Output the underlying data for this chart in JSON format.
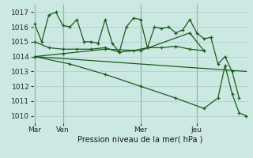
{
  "bg_color": "#cbe8e2",
  "grid_color": "#a8cfc8",
  "line_color": "#1a5c1a",
  "title": "Pression niveau de la mer( hPa )",
  "ylim": [
    1009.5,
    1017.5
  ],
  "yticks": [
    1010,
    1011,
    1012,
    1013,
    1014,
    1015,
    1016,
    1017
  ],
  "xlabel_day_labels": [
    "Mar",
    "Ven",
    "Mer",
    "Jeu"
  ],
  "xlabel_day_positions": [
    0,
    8,
    30,
    46
  ],
  "vline_positions": [
    0,
    8,
    30,
    46
  ],
  "series": [
    {
      "x": [
        0,
        2,
        4,
        6,
        8,
        10,
        12,
        14,
        16,
        18,
        20,
        22,
        24,
        26,
        28,
        30,
        32,
        34,
        36,
        38,
        40,
        42,
        44,
        46,
        48,
        50,
        52,
        54,
        56,
        58
      ],
      "y": [
        1016.2,
        1015.0,
        1016.8,
        1017.0,
        1016.1,
        1016.0,
        1016.5,
        1015.0,
        1015.0,
        1014.9,
        1016.5,
        1014.9,
        1014.3,
        1016.0,
        1016.6,
        1016.5,
        1014.6,
        1016.0,
        1015.9,
        1016.0,
        1015.6,
        1015.8,
        1016.5,
        1015.6,
        1015.2,
        1015.3,
        1013.5,
        1014.0,
        1013.0,
        1011.2
      ],
      "marker": true
    },
    {
      "x": [
        0,
        4,
        8,
        12,
        16,
        20,
        24,
        28,
        32,
        36,
        40,
        44,
        48
      ],
      "y": [
        1015.0,
        1014.6,
        1014.5,
        1014.5,
        1014.5,
        1014.6,
        1014.3,
        1014.4,
        1014.6,
        1014.6,
        1014.7,
        1014.5,
        1014.4
      ],
      "marker": true
    },
    {
      "x": [
        0,
        60
      ],
      "y": [
        1014.0,
        1013.0
      ],
      "marker": false
    },
    {
      "x": [
        0,
        8,
        20,
        30,
        44,
        48
      ],
      "y": [
        1014.0,
        1014.2,
        1014.5,
        1014.4,
        1015.6,
        1014.4
      ],
      "marker": true
    },
    {
      "x": [
        0,
        10,
        20,
        30,
        40,
        48,
        52,
        54,
        56,
        58,
        60
      ],
      "y": [
        1014.0,
        1013.5,
        1012.8,
        1012.0,
        1011.2,
        1010.5,
        1011.2,
        1013.4,
        1011.5,
        1010.2,
        1010.0
      ],
      "marker": true
    }
  ],
  "n_points": 61
}
